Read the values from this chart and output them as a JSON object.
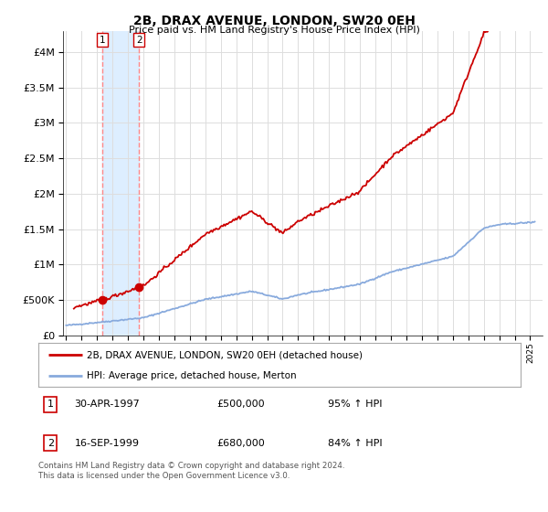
{
  "title": "2B, DRAX AVENUE, LONDON, SW20 0EH",
  "subtitle": "Price paid vs. HM Land Registry's House Price Index (HPI)",
  "ytick_values": [
    0,
    500000,
    1000000,
    1500000,
    2000000,
    2500000,
    3000000,
    3500000,
    4000000
  ],
  "ylim": [
    0,
    4300000
  ],
  "xlim_start": 1994.8,
  "xlim_end": 2025.8,
  "purchase_dates": [
    1997.33,
    1999.71
  ],
  "purchase_prices": [
    500000,
    680000
  ],
  "purchase_labels": [
    "1",
    "2"
  ],
  "legend_line1": "2B, DRAX AVENUE, LONDON, SW20 0EH (detached house)",
  "legend_line2": "HPI: Average price, detached house, Merton",
  "table_rows": [
    [
      "1",
      "30-APR-1997",
      "£500,000",
      "95% ↑ HPI"
    ],
    [
      "2",
      "16-SEP-1999",
      "£680,000",
      "84% ↑ HPI"
    ]
  ],
  "footer": "Contains HM Land Registry data © Crown copyright and database right 2024.\nThis data is licensed under the Open Government Licence v3.0.",
  "house_color": "#cc0000",
  "hpi_color": "#88aadd",
  "vline_color": "#ff8888",
  "highlight_color": "#ddeeff",
  "grid_color": "#dddddd",
  "background_color": "#ffffff"
}
